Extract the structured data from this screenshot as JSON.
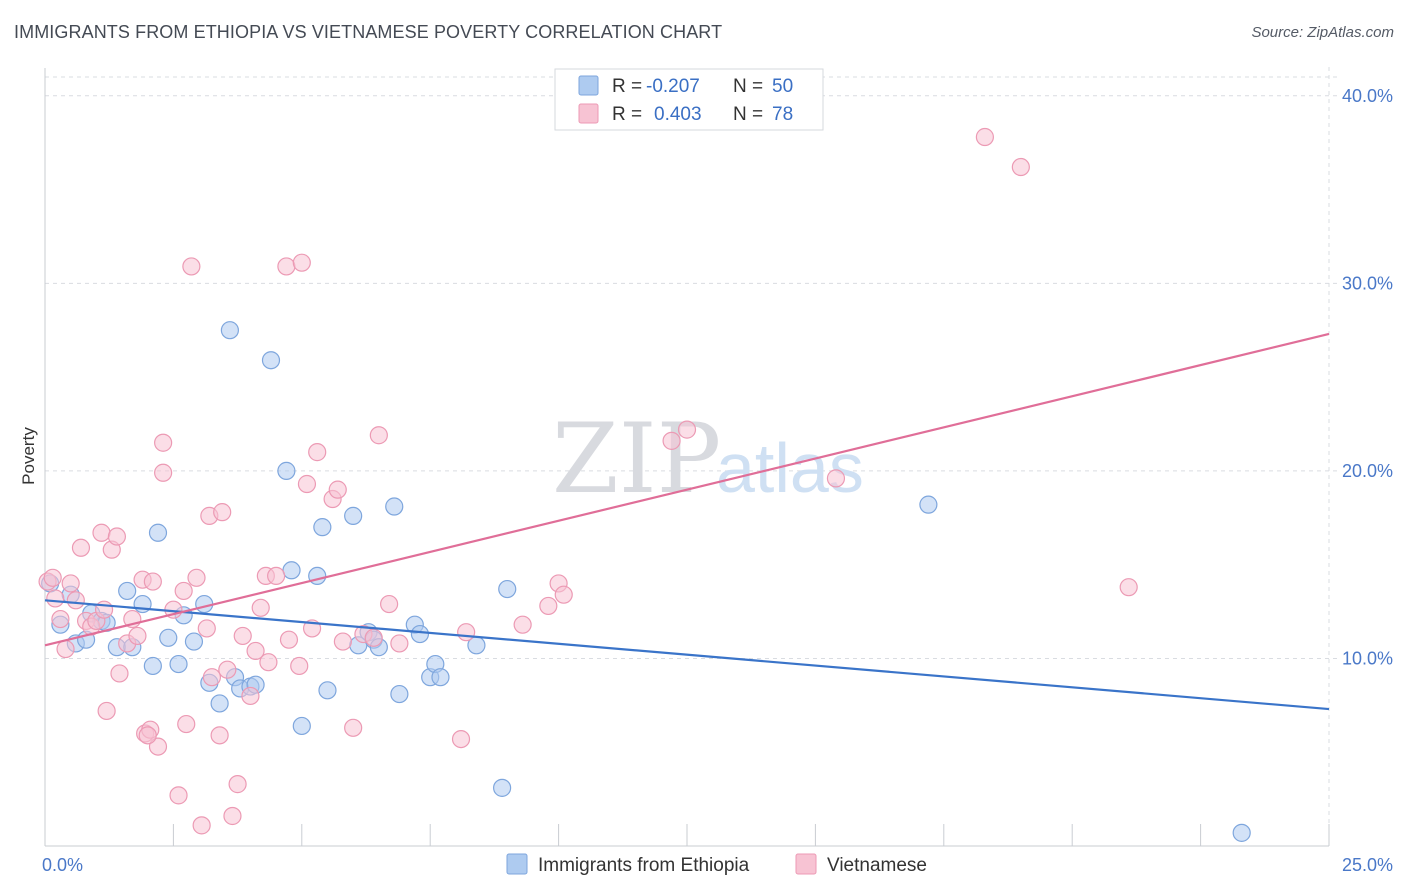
{
  "header": {
    "title": "IMMIGRANTS FROM ETHIOPIA VS VIETNAMESE POVERTY CORRELATION CHART",
    "source": "Source: ZipAtlas.com"
  },
  "watermark": {
    "zip": "ZIP",
    "atlas": "atlas"
  },
  "legend": {
    "rows": [
      {
        "r_label": "R =",
        "r_value": "-0.207",
        "n_label": "N =",
        "n_value": "50",
        "color": "#aecbf0",
        "stroke": "#7ea6dd"
      },
      {
        "r_label": "R =",
        "r_value": "0.403",
        "n_label": "N =",
        "n_value": "78",
        "color": "#f7c3d3",
        "stroke": "#ec9ab4"
      }
    ]
  },
  "bottom_legend": [
    {
      "label": "Immigrants from Ethiopia",
      "color": "#aecbf0",
      "stroke": "#7ea6dd"
    },
    {
      "label": "Vietnamese",
      "color": "#f7c3d3",
      "stroke": "#ec9ab4"
    }
  ],
  "chart_data": {
    "type": "scatter",
    "title": "IMMIGRANTS FROM ETHIOPIA VS VIETNAMESE POVERTY CORRELATION CHART",
    "ylabel": "Poverty",
    "xlabel": "",
    "xlim": [
      0,
      25
    ],
    "ylim": [
      0,
      41
    ],
    "x_tick_labels": [
      {
        "value": 0,
        "label": "0.0%"
      },
      {
        "value": 25,
        "label": "25.0%"
      }
    ],
    "y_tick_labels": [
      {
        "value": 10,
        "label": "10.0%"
      },
      {
        "value": 20,
        "label": "20.0%"
      },
      {
        "value": 30,
        "label": "30.0%"
      },
      {
        "value": 40,
        "label": "40.0%"
      }
    ],
    "series": [
      {
        "name": "Immigrants from Ethiopia",
        "color": "#aecbf0",
        "stroke": "#7ea6dd",
        "line_color": "#3a74c9",
        "trend": {
          "x": [
            0,
            25
          ],
          "y": [
            13.1,
            7.3
          ]
        },
        "points": [
          [
            0.1,
            14.0
          ],
          [
            0.3,
            11.8
          ],
          [
            0.5,
            13.4
          ],
          [
            0.6,
            10.8
          ],
          [
            0.8,
            11.0
          ],
          [
            0.9,
            12.4
          ],
          [
            1.1,
            12.0
          ],
          [
            1.2,
            11.9
          ],
          [
            1.4,
            10.6
          ],
          [
            1.6,
            13.6
          ],
          [
            1.7,
            10.6
          ],
          [
            1.9,
            12.9
          ],
          [
            2.1,
            9.6
          ],
          [
            2.2,
            16.7
          ],
          [
            2.4,
            11.1
          ],
          [
            2.6,
            9.7
          ],
          [
            2.7,
            12.3
          ],
          [
            2.9,
            10.9
          ],
          [
            3.1,
            12.9
          ],
          [
            3.2,
            8.7
          ],
          [
            3.4,
            7.6
          ],
          [
            3.6,
            27.5
          ],
          [
            3.7,
            9.0
          ],
          [
            3.8,
            8.4
          ],
          [
            4.0,
            8.5
          ],
          [
            4.1,
            8.6
          ],
          [
            4.4,
            25.9
          ],
          [
            4.7,
            20.0
          ],
          [
            4.8,
            14.7
          ],
          [
            5.0,
            6.4
          ],
          [
            5.3,
            14.4
          ],
          [
            5.4,
            17.0
          ],
          [
            5.5,
            8.3
          ],
          [
            6.0,
            17.6
          ],
          [
            6.1,
            10.7
          ],
          [
            6.3,
            11.4
          ],
          [
            6.4,
            11.0
          ],
          [
            6.5,
            10.6
          ],
          [
            6.8,
            18.1
          ],
          [
            6.9,
            8.1
          ],
          [
            7.2,
            11.8
          ],
          [
            7.3,
            11.3
          ],
          [
            7.5,
            9.0
          ],
          [
            7.6,
            9.7
          ],
          [
            7.7,
            9.0
          ],
          [
            8.4,
            10.7
          ],
          [
            8.9,
            3.1
          ],
          [
            9.0,
            13.7
          ],
          [
            17.2,
            18.2
          ],
          [
            23.3,
            0.7
          ]
        ]
      },
      {
        "name": "Vietnamese",
        "color": "#f7c3d3",
        "stroke": "#ec9ab4",
        "line_color": "#e06e98",
        "trend": {
          "x": [
            0,
            25
          ],
          "y": [
            10.7,
            27.3
          ]
        },
        "points": [
          [
            0.05,
            14.1
          ],
          [
            0.2,
            13.2
          ],
          [
            0.3,
            12.1
          ],
          [
            0.4,
            10.5
          ],
          [
            0.5,
            14.0
          ],
          [
            0.6,
            13.1
          ],
          [
            0.7,
            15.9
          ],
          [
            0.8,
            12.0
          ],
          [
            0.9,
            11.7
          ],
          [
            1.0,
            12.0
          ],
          [
            1.1,
            16.7
          ],
          [
            1.15,
            12.6
          ],
          [
            1.2,
            7.2
          ],
          [
            1.3,
            15.8
          ],
          [
            1.4,
            16.5
          ],
          [
            1.45,
            9.2
          ],
          [
            1.6,
            10.8
          ],
          [
            1.7,
            12.1
          ],
          [
            1.8,
            11.2
          ],
          [
            1.9,
            14.2
          ],
          [
            1.95,
            6.0
          ],
          [
            2.05,
            6.2
          ],
          [
            2.1,
            14.1
          ],
          [
            2.2,
            5.3
          ],
          [
            2.3,
            19.9
          ],
          [
            2.3,
            21.5
          ],
          [
            2.5,
            12.6
          ],
          [
            2.6,
            2.7
          ],
          [
            2.7,
            13.6
          ],
          [
            2.75,
            6.5
          ],
          [
            2.85,
            30.9
          ],
          [
            2.95,
            14.3
          ],
          [
            3.05,
            1.1
          ],
          [
            3.15,
            11.6
          ],
          [
            3.2,
            17.6
          ],
          [
            3.25,
            9.0
          ],
          [
            3.4,
            5.9
          ],
          [
            3.45,
            17.8
          ],
          [
            3.55,
            9.4
          ],
          [
            3.65,
            1.6
          ],
          [
            3.75,
            3.3
          ],
          [
            3.85,
            11.2
          ],
          [
            4.0,
            8.0
          ],
          [
            4.1,
            10.4
          ],
          [
            4.2,
            12.7
          ],
          [
            4.3,
            14.4
          ],
          [
            4.35,
            9.8
          ],
          [
            4.5,
            14.4
          ],
          [
            4.7,
            30.9
          ],
          [
            4.75,
            11.0
          ],
          [
            4.95,
            9.6
          ],
          [
            5.0,
            31.1
          ],
          [
            5.1,
            19.3
          ],
          [
            5.2,
            11.6
          ],
          [
            5.3,
            21.0
          ],
          [
            5.6,
            18.5
          ],
          [
            5.7,
            19.0
          ],
          [
            5.8,
            10.9
          ],
          [
            6.0,
            6.3
          ],
          [
            6.2,
            11.3
          ],
          [
            6.4,
            11.1
          ],
          [
            6.5,
            21.9
          ],
          [
            6.7,
            12.9
          ],
          [
            6.9,
            10.8
          ],
          [
            8.1,
            5.7
          ],
          [
            8.2,
            11.4
          ],
          [
            9.3,
            11.8
          ],
          [
            9.8,
            12.8
          ],
          [
            10.0,
            14.0
          ],
          [
            10.1,
            13.4
          ],
          [
            12.2,
            21.6
          ],
          [
            12.5,
            22.2
          ],
          [
            15.4,
            19.6
          ],
          [
            18.3,
            37.8
          ],
          [
            19.0,
            36.2
          ],
          [
            21.1,
            13.8
          ],
          [
            0.15,
            14.3
          ],
          [
            2.0,
            5.9
          ]
        ]
      }
    ]
  }
}
